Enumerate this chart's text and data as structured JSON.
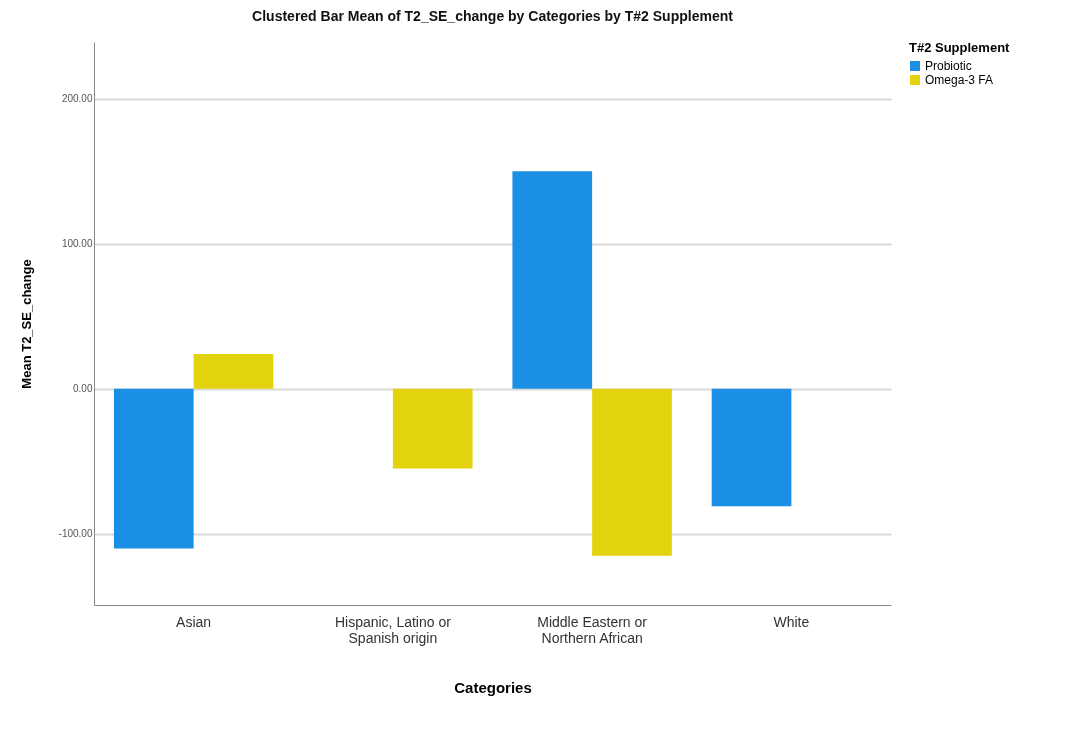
{
  "chart_data": {
    "type": "bar",
    "title": "Clustered Bar Mean of T2_SE_change by Categories by T#2 Supplement",
    "xlabel": "Categories",
    "ylabel": "Mean T2_SE_change",
    "legend_title": "T#2 Supplement",
    "categories": [
      "Asian",
      "Hispanic, Latino or Spanish origin",
      "Middle Eastern or Northern African",
      "White"
    ],
    "series": [
      {
        "name": "Probiotic",
        "color": "#1a8fe3",
        "values": [
          -110,
          null,
          150,
          -81
        ]
      },
      {
        "name": "Omega-3 FA",
        "color": "#e3d30f",
        "values": [
          24,
          -55,
          -115,
          null
        ]
      }
    ],
    "ylim": [
      -149,
      239
    ],
    "yticks": [
      {
        "value": -100,
        "label": "-100.00"
      },
      {
        "value": 0,
        "label": "0.00"
      },
      {
        "value": 100,
        "label": "100.00"
      },
      {
        "value": 200,
        "label": "200.00"
      }
    ],
    "grid": "y",
    "legend": "top right"
  }
}
